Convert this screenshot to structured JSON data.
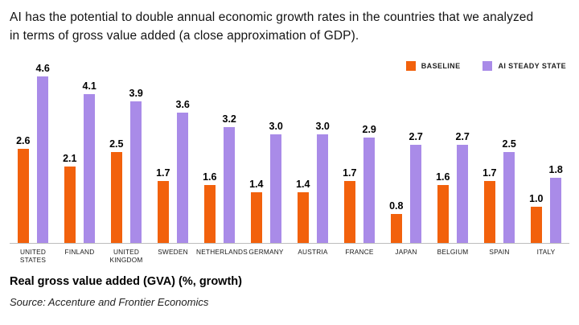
{
  "headline": "AI has the potential to double annual economic growth rates in the countries that we analyzed in terms of gross value added (a close approximation of GDP).",
  "legend": [
    {
      "label": "BASELINE",
      "color": "#F2610C",
      "icon": "orange-square-swatch"
    },
    {
      "label": "AI STEADY STATE",
      "color": "#A98BE8",
      "icon": "purple-square-swatch"
    }
  ],
  "footer": {
    "axis_title": "Real gross value added (GVA) (%, growth)",
    "source": "Source: Accenture and Frontier Economics"
  },
  "chart_data": {
    "type": "bar",
    "categories": [
      "United States",
      "Finland",
      "United Kingdom",
      "Sweden",
      "Netherlands",
      "Germany",
      "Austria",
      "France",
      "Japan",
      "Belgium",
      "Spain",
      "Italy"
    ],
    "series": [
      {
        "name": "Baseline",
        "color": "#F2610C",
        "values": [
          2.6,
          2.1,
          2.5,
          1.7,
          1.6,
          1.4,
          1.4,
          1.7,
          0.8,
          1.6,
          1.7,
          1.0
        ]
      },
      {
        "name": "AI Steady State",
        "color": "#A98BE8",
        "values": [
          4.6,
          4.1,
          3.9,
          3.6,
          3.2,
          3.0,
          3.0,
          2.9,
          2.7,
          2.7,
          2.5,
          1.8
        ]
      }
    ],
    "title": "AI has the potential to double annual economic growth rates in the countries that we analyzed in terms of gross value added (a close approximation of GDP).",
    "xlabel": "",
    "ylabel": "Real gross value added (GVA) (%, growth)",
    "ylim": [
      0,
      4.6
    ],
    "value_labels": true,
    "value_label_format": "one-decimal",
    "grid": false,
    "legend_position": "top-right"
  }
}
